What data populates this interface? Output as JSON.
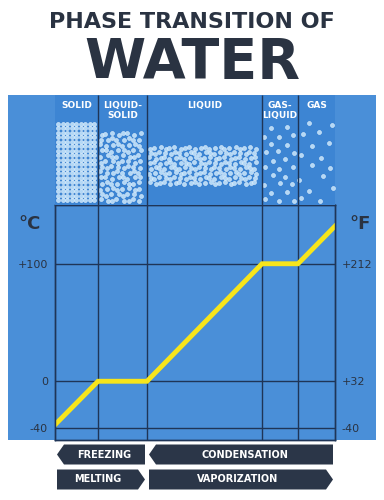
{
  "chart_data": {
    "type": "line",
    "title": "PHASE TRANSITION OF WATER",
    "y_label": "°C",
    "y2_label": "°F",
    "x": [
      0,
      43,
      92,
      207,
      243,
      280
    ],
    "values": [
      -37,
      0,
      0,
      100,
      100,
      132
    ],
    "color": "#f7e51b",
    "xlim": [
      0,
      280
    ],
    "xticks": [],
    "ylim": [
      -50,
      150
    ],
    "yticks": [
      -40,
      0,
      {
        "value": 100,
        "label": "+100"
      }
    ],
    "y2lim": [
      -58,
      302
    ],
    "y2ticks": [
      -40,
      {
        "value": 32,
        "label": "+32"
      },
      {
        "value": 212,
        "label": "+212"
      }
    ],
    "grid": true,
    "tick_labels": "y",
    "phases": [
      {
        "label": "SOLID",
        "x": [
          0,
          43
        ]
      },
      {
        "label": "LIQUID-SOLID",
        "x": [
          43,
          92
        ]
      },
      {
        "label": "LIQUID",
        "x": [
          92,
          207
        ]
      },
      {
        "label": "GAS-LIQUID",
        "x": [
          207,
          243
        ]
      },
      {
        "label": "GAS",
        "x": [
          243,
          280
        ]
      }
    ],
    "processes": [
      {
        "label": "FREEZING",
        "direction": "left",
        "x": [
          0,
          92
        ]
      },
      {
        "label": "CONDENSATION",
        "direction": "left",
        "x": [
          92,
          280
        ]
      },
      {
        "label": "MELTING",
        "direction": "right",
        "x": [
          0,
          92
        ]
      },
      {
        "label": "VAPORIZATION",
        "direction": "right",
        "x": [
          92,
          280
        ]
      }
    ]
  }
}
